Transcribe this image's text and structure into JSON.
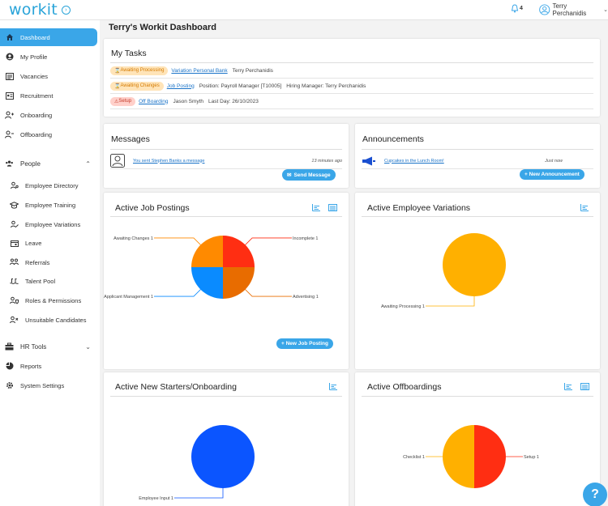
{
  "app": {
    "logo": "workit",
    "notification_count": "4",
    "user_name": "Terry Perchanidis"
  },
  "sidebar": {
    "dashboard": "Dashboard",
    "my_profile": "My Profile",
    "vacancies": "Vacancies",
    "recruitment": "Recruitment",
    "onboarding": "Onboarding",
    "offboarding": "Offboarding",
    "people": "People",
    "employee_directory": "Employee Directory",
    "employee_training": "Employee Training",
    "employee_variations": "Employee Variations",
    "leave": "Leave",
    "referrals": "Referrals",
    "talent_pool": "Talent Pool",
    "roles_permissions": "Roles & Permissions",
    "unsuitable_candidates": "Unsuitable Candidates",
    "hr_tools": "HR Tools",
    "reports": "Reports",
    "system_settings": "System Settings"
  },
  "page": {
    "title": "Terry's Workit Dashboard"
  },
  "tasks": {
    "title": "My Tasks",
    "rows": [
      {
        "badge": "Awaiting Processing",
        "link": "Variation Personal Bank",
        "text1": "Terry Perchanidis",
        "text2": ""
      },
      {
        "badge": "Awaiting Changes",
        "link": "Job Posting",
        "text1": "Position: Payroll Manager [T10005]",
        "text2": "Hiring Manager: Terry Perchanidis"
      },
      {
        "badge": "Setup",
        "link": "Off Boarding",
        "text1": "Jason Smyth",
        "text2": "Last Day: 26/10/2023"
      }
    ]
  },
  "messages": {
    "title": "Messages",
    "item_text": "You sent Stephen Banks a message",
    "item_time": "13 minutes ago",
    "button": "Send Message"
  },
  "announcements": {
    "title": "Announcements",
    "item_text": "Cupcakes in the Lunch Room!",
    "item_time": "Just now",
    "button": "+ New Announcement"
  },
  "job_postings": {
    "title": "Active Job Postings",
    "button": "+ New Job Posting"
  },
  "employee_variations": {
    "title": "Active Employee Variations"
  },
  "new_starters": {
    "title": "Active New Starters/Onboarding"
  },
  "offboardings": {
    "title": "Active Offboardings"
  },
  "colors": {
    "accent": "#3aa6e8",
    "red": "#ff2e12",
    "orange": "#ff8a00",
    "dark_orange": "#e86c00",
    "blue": "#0a8bff",
    "amber": "#ffb000",
    "royal_blue": "#0b55ff"
  },
  "chart_data": [
    {
      "type": "pie",
      "title": "Active Job Postings",
      "slices": [
        {
          "label": "Incomplete 1",
          "value": 1,
          "color": "#ff2e12"
        },
        {
          "label": "Advertising 1",
          "value": 1,
          "color": "#e86c00"
        },
        {
          "label": "Applicant Management 1",
          "value": 1,
          "color": "#0a8bff"
        },
        {
          "label": "Awaiting Changes 1",
          "value": 1,
          "color": "#ff8a00"
        }
      ]
    },
    {
      "type": "pie",
      "title": "Active Employee Variations",
      "slices": [
        {
          "label": "Awaiting Processing 1",
          "value": 1,
          "color": "#ffb000"
        }
      ]
    },
    {
      "type": "pie",
      "title": "Active New Starters/Onboarding",
      "slices": [
        {
          "label": "Employee Input 1",
          "value": 1,
          "color": "#0b55ff"
        }
      ]
    },
    {
      "type": "pie",
      "title": "Active Offboardings",
      "slices": [
        {
          "label": "Setup 1",
          "value": 1,
          "color": "#ff2e12"
        },
        {
          "label": "Checklist 1",
          "value": 1,
          "color": "#ffb000"
        }
      ]
    }
  ]
}
